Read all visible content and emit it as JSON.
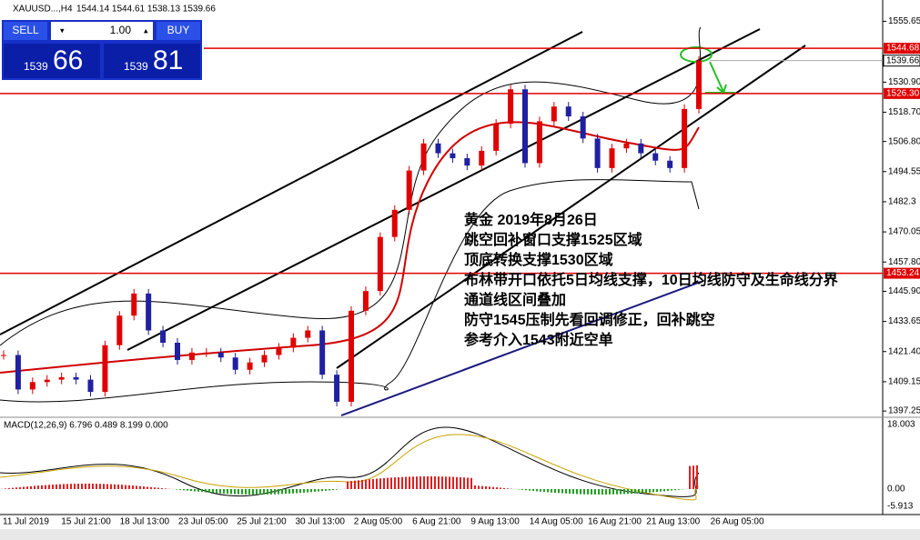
{
  "toolbar": {
    "symbol": "XAUUSD...,H4",
    "ohlc": "1544.14 1544.61 1538.13 1539.66"
  },
  "trade_panel": {
    "sell": "SELL",
    "buy": "BUY",
    "lot": "1.00",
    "sell_price_head": "1539",
    "sell_price_tail": "66",
    "buy_price_head": "1539",
    "buy_price_tail": "81"
  },
  "chart": {
    "ylim": [
      1394.7,
      1557.65
    ],
    "yticks": [
      1555.65,
      {
        "value": 1530.9,
        "label": "1530.90"
      },
      {
        "value": 1518.7,
        "label": "1518.70"
      },
      {
        "value": 1506.8,
        "label": "1506.80"
      },
      1494.55,
      1482.3,
      1470.05,
      {
        "value": 1457.8,
        "label": "1457.80"
      },
      {
        "value": 1445.9,
        "label": "1445.90"
      },
      1433.65,
      {
        "value": 1421.4,
        "label": "1421.40"
      },
      1409.15,
      1397.25
    ],
    "levels": [
      {
        "value": 1544.68,
        "label": "1544.68",
        "color": "#e00000"
      },
      {
        "value": 1526.3,
        "label": "1526.30",
        "color": "#e00000"
      },
      {
        "value": 1453.24,
        "label": "1453.24",
        "color": "#e00000"
      }
    ],
    "bid": {
      "value": 1539.66,
      "label": "1539.66"
    },
    "closes": [
      1420,
      1406,
      1409,
      1410,
      1411,
      1410,
      1405,
      1424,
      1436,
      1445,
      1430,
      1425,
      1418,
      1421,
      1421,
      1419,
      1414,
      1417,
      1420,
      1423,
      1427,
      1430,
      1412,
      1401,
      1438,
      1446,
      1468,
      1479,
      1495,
      1506,
      1502,
      1500,
      1497,
      1503,
      1514,
      1528,
      1498,
      1515,
      1521,
      1517,
      1508,
      1496,
      1504,
      1506,
      1502,
      1499,
      1496,
      1520,
      1539.66
    ],
    "x_labels": [
      "11 Jul 2019",
      "15 Jul 21:00",
      "18 Jul 13:00",
      "23 Jul 05:00",
      "25 Jul 21:00",
      "30 Jul 13:00",
      "2 Aug 05:00",
      "6 Aug 21:00",
      "9 Aug 13:00",
      "14 Aug 05:00",
      "16 Aug 21:00",
      "21 Aug 13:00",
      "26 Aug 05:00"
    ]
  },
  "macd": {
    "title": "MACD(12,26,9) 6.796 0.489 8.199 0.000",
    "ticks": [
      "18.003",
      "0.00",
      "-5.913"
    ]
  },
  "annotation": {
    "lines": [
      "黄金 2019年8月26日",
      "跳空回补窗口支撑1525区域",
      "顶底转换支撑1530区域",
      "布林带开口依托5日均线支撑，10日均线防守及生命线分界",
      "通道线区间叠加",
      "防守1545压制先看回调修正，回补跳空",
      "参考介入1543附近空单"
    ]
  }
}
